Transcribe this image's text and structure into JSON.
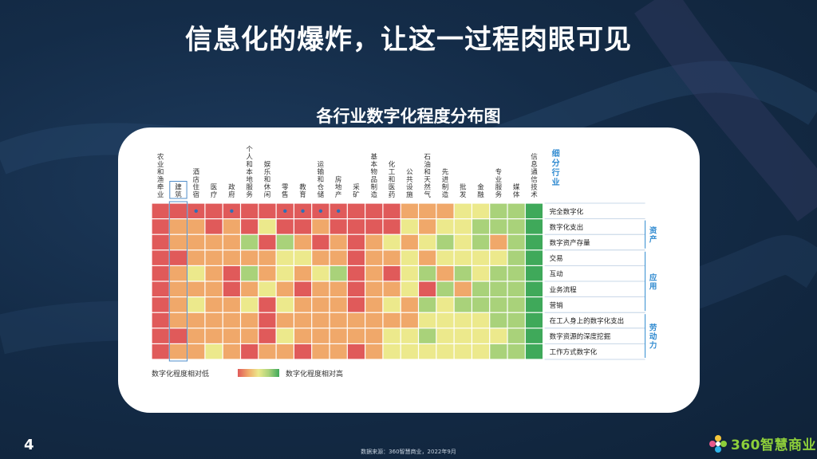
{
  "slide": {
    "title": "信息化的爆炸，让这一过程肉眼可见",
    "page_number": "4",
    "source": "数据来源：360智慧商业，2022年9月",
    "logo_text": "360智慧商业"
  },
  "chart_data": {
    "type": "heatmap",
    "title": "各行业数字化程度分布图",
    "industry_axis_label": "细分行业",
    "industries": [
      "农业和渔牵业",
      "建筑",
      "酒店住宿",
      "医疗",
      "政府",
      "个人和本地服务",
      "娱乐和休闲",
      "零售",
      "教育",
      "运输和仓储",
      "房地产",
      "采矿",
      "基本物品制造",
      "化工和医药",
      "公共设施",
      "石油和天然气",
      "先进制造",
      "批发",
      "金融",
      "专业服务",
      "媒体",
      "信息通信技术"
    ],
    "highlighted_industry": "建筑",
    "rows": [
      "完全数字化",
      "数字化支出",
      "数字资产存量",
      "交易",
      "互动",
      "业务流程",
      "营销",
      "在工人身上的数字化支出",
      "数字资源的深度挖掘",
      "工作方式数字化"
    ],
    "groups": [
      {
        "label": "资产",
        "rows": [
          "数字化支出",
          "数字资产存量"
        ]
      },
      {
        "label": "应用",
        "rows": [
          "交易",
          "互动",
          "业务流程",
          "营销"
        ]
      },
      {
        "label": "劳动力",
        "rows": [
          "在工人身上的数字化支出",
          "数字资源的深度挖掘",
          "工作方式数字化"
        ]
      }
    ],
    "dotted_industries": [
      "酒店住宿",
      "政府",
      "零售",
      "教育",
      "运输和仓储",
      "房地产"
    ],
    "values": [
      [
        1,
        1,
        1,
        1,
        1,
        1,
        1,
        1,
        1,
        1,
        1,
        1,
        1,
        1,
        2,
        2,
        2,
        3,
        3,
        4,
        4,
        5
      ],
      [
        1,
        2,
        2,
        1,
        2,
        1,
        3,
        1,
        1,
        2,
        1,
        1,
        1,
        1,
        3,
        2,
        3,
        3,
        4,
        4,
        4,
        5
      ],
      [
        1,
        2,
        2,
        2,
        2,
        4,
        1,
        4,
        2,
        1,
        2,
        1,
        2,
        3,
        2,
        3,
        4,
        3,
        4,
        2,
        4,
        5
      ],
      [
        1,
        1,
        2,
        2,
        2,
        2,
        2,
        3,
        3,
        2,
        2,
        1,
        2,
        2,
        3,
        2,
        3,
        3,
        3,
        3,
        4,
        5
      ],
      [
        1,
        2,
        3,
        2,
        1,
        4,
        2,
        3,
        2,
        3,
        4,
        1,
        2,
        1,
        3,
        4,
        2,
        4,
        3,
        4,
        4,
        5
      ],
      [
        1,
        2,
        2,
        2,
        1,
        2,
        3,
        2,
        1,
        2,
        2,
        1,
        2,
        2,
        3,
        1,
        4,
        2,
        4,
        4,
        4,
        5
      ],
      [
        1,
        2,
        3,
        2,
        2,
        3,
        1,
        3,
        2,
        2,
        2,
        1,
        2,
        3,
        2,
        4,
        3,
        4,
        4,
        4,
        4,
        5
      ],
      [
        1,
        2,
        2,
        2,
        2,
        2,
        1,
        2,
        2,
        2,
        2,
        2,
        2,
        2,
        2,
        3,
        3,
        3,
        3,
        4,
        4,
        5
      ],
      [
        1,
        1,
        2,
        2,
        2,
        2,
        1,
        3,
        2,
        2,
        2,
        2,
        2,
        3,
        3,
        4,
        3,
        3,
        3,
        3,
        4,
        5
      ],
      [
        1,
        2,
        2,
        3,
        2,
        1,
        2,
        2,
        1,
        2,
        2,
        1,
        2,
        3,
        3,
        3,
        3,
        3,
        3,
        4,
        4,
        5
      ]
    ],
    "legend": {
      "low": "数字化程度相对低",
      "high": "数字化程度相对高"
    },
    "colors": {
      "1": "#e05a5a",
      "2": "#f0a86a",
      "3": "#ece98c",
      "4": "#a9d27a",
      "5": "#3fa95a"
    },
    "dot_color": "#2f6fb5",
    "highlight_color": "#4f8cc9",
    "group_label_color": "#2f8ad0"
  }
}
